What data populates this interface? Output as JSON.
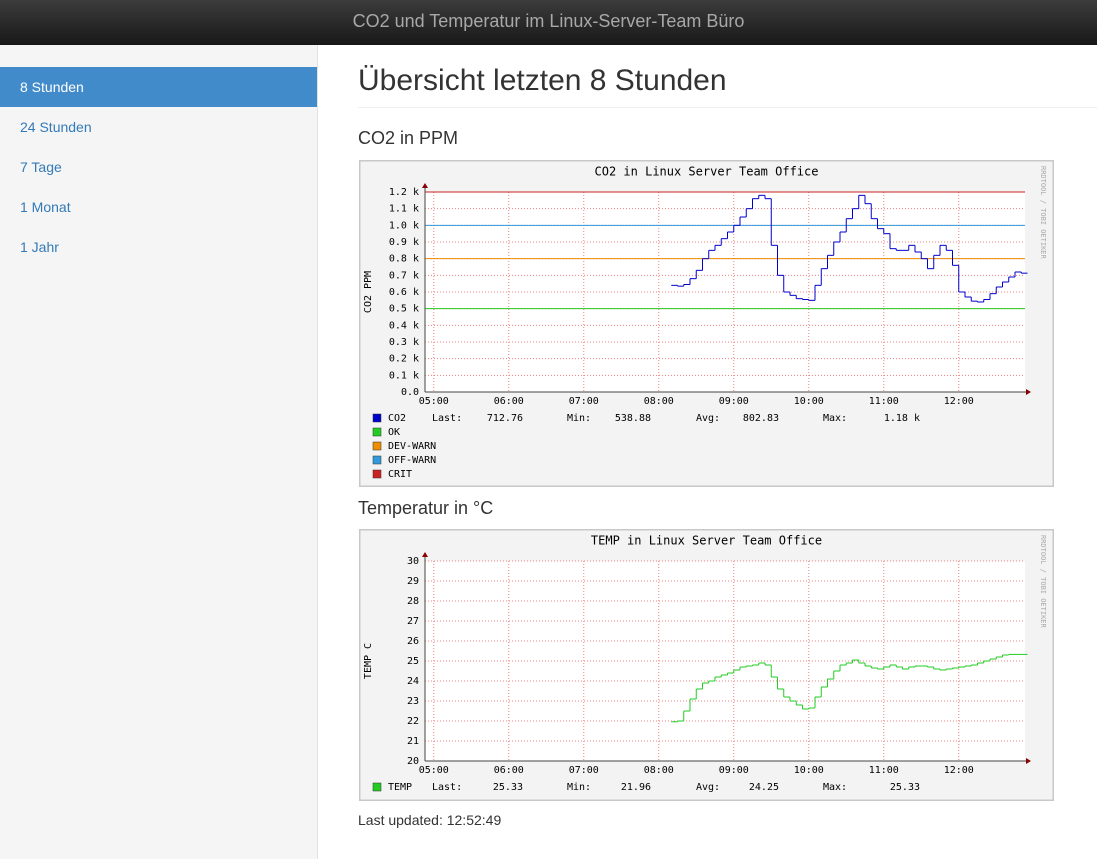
{
  "header": {
    "title": "CO2 und Temperatur im Linux-Server-Team Büro"
  },
  "nav": [
    "8 Stunden",
    "24 Stunden",
    "7 Tage",
    "1 Monat",
    "1 Jahr"
  ],
  "main": {
    "title": "Übersicht letzten 8 Stunden",
    "sections": [
      "CO2 in PPM",
      "Temperatur in °C"
    ],
    "last_updated": "Last updated: 12:52:49"
  },
  "chart_data": [
    {
      "type": "line",
      "title": "CO2 in Linux Server Team Office",
      "ylabel": "CO2 PPM",
      "watermark": "RRDTOOL / TOBI OETIKER",
      "grid": true,
      "x": [
        490,
        495,
        500,
        505,
        510,
        515,
        520,
        525,
        530,
        535,
        540,
        545,
        550,
        555,
        560,
        565,
        570,
        575,
        580,
        585,
        590,
        595,
        600,
        605,
        610,
        615,
        620,
        625,
        630,
        635,
        640,
        645,
        650,
        655,
        660,
        665,
        670,
        675,
        680,
        685,
        690,
        695,
        700,
        705,
        710,
        715,
        720,
        725,
        730,
        735,
        740,
        745,
        750,
        755,
        760,
        765,
        770
      ],
      "xlim": [
        293,
        773
      ],
      "xticks": [
        {
          "value": 300,
          "label": "05:00"
        },
        {
          "value": 360,
          "label": "06:00"
        },
        {
          "value": 420,
          "label": "07:00"
        },
        {
          "value": 480,
          "label": "08:00"
        },
        {
          "value": 540,
          "label": "09:00"
        },
        {
          "value": 600,
          "label": "10:00"
        },
        {
          "value": 660,
          "label": "11:00"
        },
        {
          "value": 720,
          "label": "12:00"
        }
      ],
      "ylim": [
        0,
        1200
      ],
      "yticks": [
        {
          "value": 0,
          "label": "0.0"
        },
        {
          "value": 100,
          "label": "0.1 k"
        },
        {
          "value": 200,
          "label": "0.2 k"
        },
        {
          "value": 300,
          "label": "0.3 k"
        },
        {
          "value": 400,
          "label": "0.4 k"
        },
        {
          "value": 500,
          "label": "0.5 k"
        },
        {
          "value": 600,
          "label": "0.6 k"
        },
        {
          "value": 700,
          "label": "0.7 k"
        },
        {
          "value": 800,
          "label": "0.8 k"
        },
        {
          "value": 900,
          "label": "0.9 k"
        },
        {
          "value": 1000,
          "label": "1.0 k"
        },
        {
          "value": 1100,
          "label": "1.1 k"
        },
        {
          "value": 1200,
          "label": "1.2 k"
        }
      ],
      "series": [
        {
          "name": "CO2",
          "color": "#0000cc",
          "values": [
            640,
            635,
            645,
            680,
            730,
            800,
            850,
            880,
            920,
            960,
            1000,
            1050,
            1100,
            1160,
            1180,
            1160,
            880,
            700,
            600,
            580,
            560,
            555,
            550,
            640,
            740,
            820,
            900,
            960,
            1040,
            1100,
            1180,
            1130,
            1040,
            980,
            950,
            860,
            850,
            850,
            880,
            840,
            800,
            740,
            820,
            880,
            850,
            760,
            600,
            570,
            545,
            540,
            555,
            590,
            630,
            660,
            690,
            720,
            713
          ]
        }
      ],
      "thresholds": [
        {
          "name": "OK",
          "color": "#22cc22",
          "value": 500
        },
        {
          "name": "DEV-WARN",
          "color": "#f08c00",
          "value": 800
        },
        {
          "name": "OFF-WARN",
          "color": "#3399dd",
          "value": 1000
        },
        {
          "name": "CRIT",
          "color": "#cc2222",
          "value": 1200
        }
      ],
      "stats": [
        {
          "label": "Last:",
          "value": "712.76"
        },
        {
          "label": "Min:",
          "value": "538.88"
        },
        {
          "label": "Avg:",
          "value": "802.83"
        },
        {
          "label": "Max:",
          "value": "1.18 k"
        }
      ]
    },
    {
      "type": "line",
      "title": "TEMP in Linux Server Team Office",
      "ylabel": "TEMP C",
      "watermark": "RRDTOOL / TOBI OETIKER",
      "grid": true,
      "x": [
        490,
        495,
        500,
        505,
        510,
        515,
        520,
        525,
        530,
        535,
        540,
        545,
        550,
        555,
        560,
        565,
        570,
        575,
        580,
        585,
        590,
        595,
        600,
        605,
        610,
        615,
        620,
        625,
        630,
        635,
        640,
        645,
        650,
        655,
        660,
        665,
        670,
        675,
        680,
        685,
        690,
        695,
        700,
        705,
        710,
        715,
        720,
        725,
        730,
        735,
        740,
        745,
        750,
        755,
        760,
        765,
        770
      ],
      "xlim": [
        293,
        773
      ],
      "xticks": [
        {
          "value": 300,
          "label": "05:00"
        },
        {
          "value": 360,
          "label": "06:00"
        },
        {
          "value": 420,
          "label": "07:00"
        },
        {
          "value": 480,
          "label": "08:00"
        },
        {
          "value": 540,
          "label": "09:00"
        },
        {
          "value": 600,
          "label": "10:00"
        },
        {
          "value": 660,
          "label": "11:00"
        },
        {
          "value": 720,
          "label": "12:00"
        }
      ],
      "ylim": [
        20,
        30
      ],
      "yticks": [
        20,
        21,
        22,
        23,
        24,
        25,
        26,
        27,
        28,
        29,
        30
      ],
      "series": [
        {
          "name": "TEMP",
          "color": "#22cc22",
          "values": [
            21.96,
            22.0,
            22.5,
            23.1,
            23.6,
            23.9,
            24.0,
            24.2,
            24.3,
            24.4,
            24.55,
            24.7,
            24.75,
            24.8,
            24.9,
            24.8,
            24.2,
            23.6,
            23.2,
            23.0,
            22.8,
            22.6,
            22.65,
            23.2,
            23.7,
            24.1,
            24.5,
            24.8,
            24.9,
            25.05,
            24.9,
            24.75,
            24.65,
            24.6,
            24.7,
            24.8,
            24.7,
            24.6,
            24.7,
            24.75,
            24.75,
            24.7,
            24.6,
            24.55,
            24.6,
            24.65,
            24.7,
            24.75,
            24.8,
            24.9,
            25.0,
            25.1,
            25.2,
            25.3,
            25.33,
            25.33,
            25.33
          ]
        }
      ],
      "thresholds": [],
      "stats": [
        {
          "label": "Last:",
          "value": "25.33"
        },
        {
          "label": "Min:",
          "value": "21.96"
        },
        {
          "label": "Avg:",
          "value": "24.25"
        },
        {
          "label": "Max:",
          "value": "25.33"
        }
      ]
    }
  ]
}
